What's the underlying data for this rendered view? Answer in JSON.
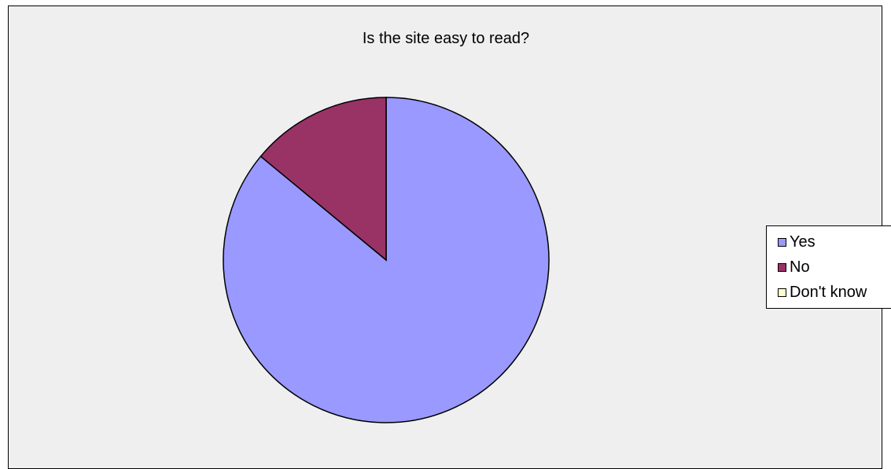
{
  "chart_data": {
    "type": "pie",
    "title": "Is the site easy to read?",
    "categories": [
      "Yes",
      "No",
      "Don't know"
    ],
    "values": [
      86,
      14,
      0
    ],
    "colors": [
      "#9999ff",
      "#993366",
      "#ffffcc"
    ],
    "legend_position": "right",
    "background": "#efefef"
  }
}
